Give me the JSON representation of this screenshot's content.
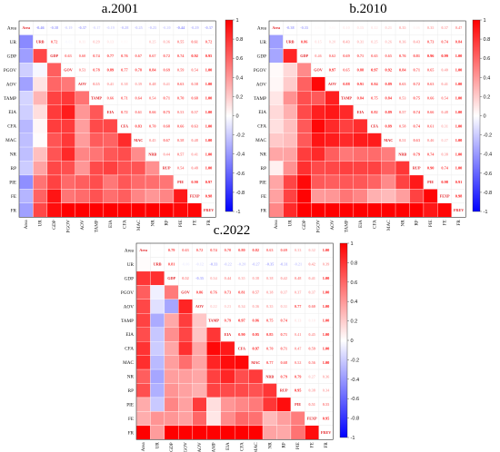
{
  "chart_data": [
    {
      "type": "heatmap",
      "title": "a.2001",
      "variables": [
        "Area",
        "UR",
        "GDP",
        "PGOV",
        "AOV",
        "TAMP",
        "EIA",
        "CFA",
        "MAC",
        "NR",
        "RP",
        "PIE",
        "FE",
        "FR"
      ],
      "diagonal_labels": [
        "Area",
        "URB",
        "GDP",
        "GOV",
        "AOV",
        "TAMP",
        "EIA",
        "CFA",
        "MAC",
        "NRB",
        "RUP",
        "PIE",
        "FEXP",
        "FREV"
      ],
      "upper": [
        [
          -0.46,
          -0.38,
          -0.19,
          -0.37,
          -0.17,
          -0.19,
          -0.28,
          -0.25,
          -0.25,
          -0.2,
          -0.44,
          -0.29,
          -0.37
        ],
        [
          0.72,
          -0.03,
          0.11,
          0.29,
          0.13,
          0.03,
          0.01,
          0.25,
          0.36,
          0.55,
          0.61,
          0.72
        ],
        [
          0.63,
          0.6,
          0.74,
          0.77,
          0.76,
          0.67,
          0.67,
          0.72,
          0.74,
          0.92,
          0.95
        ],
        [
          0.53,
          0.78,
          0.89,
          0.77,
          0.78,
          0.84,
          0.69,
          0.59,
          0.54
        ],
        [
          0.55,
          0.41,
          0.38,
          0.39,
          0.48,
          0.41,
          0.63,
          0.58
        ],
        [
          0.66,
          0.71,
          0.64,
          0.54,
          0.71,
          0.7,
          0.68
        ],
        [
          0.72,
          0.61,
          0.66,
          0.75,
          0.53,
          0.57
        ],
        [
          0.83,
          0.7,
          0.68,
          0.66,
          0.63
        ],
        [
          0.45,
          0.67,
          0.58,
          0.48
        ],
        [
          0.44,
          0.57,
          0.41
        ],
        [
          0.54,
          0.48
        ],
        [
          0.9,
          0.97
        ],
        [
          0.98
        ]
      ],
      "colorbar": {
        "min": -1,
        "max": 1,
        "ticks": [
          "1",
          "0.8",
          "0.6",
          "0.4",
          "0.2",
          "0",
          "-0.2",
          "-0.4",
          "-0.6",
          "-0.8",
          "-1"
        ]
      }
    },
    {
      "type": "heatmap",
      "title": "b.2010",
      "variables": [
        "Area",
        "UR",
        "GDP",
        "PGOV",
        "AOV",
        "TAMP",
        "EIA",
        "CFA",
        "MAC",
        "NR",
        "RP",
        "PIE",
        "FE",
        "FR"
      ],
      "diagonal_labels": [
        "Area",
        "URB",
        "GDP",
        "GOV",
        "AOV",
        "TAMP",
        "EIA",
        "CFA",
        "MAC",
        "NRB",
        "RUP",
        "PIE",
        "FEXP",
        "FREV"
      ],
      "upper": [
        [
          -0.38,
          -0.35,
          0.02,
          0.03,
          0.1,
          0.15,
          0.12,
          0.21,
          0.35,
          0.06,
          0.35,
          0.37,
          0.47
        ],
        [
          0.86,
          0.15,
          0.2,
          0.43,
          0.31,
          0.25,
          0.26,
          0.36,
          0.43,
          0.73,
          0.74,
          0.84
        ],
        [
          0.46,
          0.62,
          0.69,
          0.71,
          0.65,
          0.65,
          0.76,
          0.81,
          0.96,
          0.99
        ],
        [
          0.97,
          0.65,
          0.88,
          0.97,
          0.92,
          0.84,
          0.71,
          0.65,
          0.4
        ],
        [
          0.88,
          0.91,
          0.84,
          0.89,
          0.63,
          0.72,
          0.63,
          0.41
        ],
        [
          0.84,
          0.75,
          0.84,
          0.53,
          0.75,
          0.66,
          0.54
        ],
        [
          0.82,
          0.89,
          0.57,
          0.74,
          0.66,
          0.48
        ],
        [
          0.89,
          0.58,
          0.74,
          0.61,
          0.31
        ],
        [
          0.51,
          0.63,
          0.46,
          0.27
        ],
        [
          0.79,
          0.74,
          0.38
        ],
        [
          0.9,
          0.74
        ],
        [
          0.98,
          0.91
        ],
        [
          0.98
        ]
      ],
      "colorbar": {
        "min": -1,
        "max": 1,
        "ticks": [
          "1",
          "0.8",
          "0.6",
          "0.4",
          "0.2",
          "0",
          "-0.2",
          "-0.4",
          "-0.6",
          "-0.8",
          "-1"
        ]
      }
    },
    {
      "type": "heatmap",
      "title": "c.2022",
      "variables": [
        "Area",
        "UR",
        "GDP",
        "PGOV",
        "AOV",
        "TAMP",
        "EIA",
        "CFA",
        "MAC",
        "NR",
        "RP",
        "PIE",
        "FE",
        "FR"
      ],
      "diagonal_labels": [
        "Area",
        "URB",
        "GDP",
        "GOV",
        "AOV",
        "TAMP",
        "EIA",
        "CFA",
        "MAC",
        "NRB",
        "RUP",
        "PIE",
        "FEXP",
        "FREV"
      ],
      "upper": [
        [
          0.01,
          0.79,
          0.63,
          0.72,
          0.74,
          0.7,
          0.8,
          0.82,
          0.63,
          0.69,
          0.33,
          0.32
        ],
        [
          0.81,
          -0.06,
          -0.12,
          -0.33,
          -0.22,
          -0.2,
          -0.27,
          -0.35,
          -0.31,
          -0.21,
          0.42,
          0.39
        ],
        [
          0.52,
          -0.35,
          0.34,
          0.44,
          0.35,
          0.38,
          0.38,
          0.42,
          0.48,
          0.41
        ],
        [
          0.86,
          0.76,
          0.73,
          0.81,
          0.57,
          0.38,
          0.37,
          0.37,
          0.37
        ],
        [
          0.22,
          0.23,
          0.34,
          0.36,
          0.35,
          0.31,
          0.77,
          0.6
        ],
        [
          0.79,
          0.97,
          0.86,
          0.75,
          0.74,
          0.13,
          0.1
        ],
        [
          0.9,
          0.95,
          0.85,
          0.71,
          0.41,
          0.45
        ],
        [
          0.97,
          0.7,
          0.71,
          0.47,
          0.59
        ],
        [
          0.77,
          0.68,
          0.52,
          0.56
        ],
        [
          0.79,
          0.79,
          0.27,
          0.36
        ],
        [
          0.95,
          0.38,
          0.34
        ],
        [
          0.51,
          0.55
        ],
        [
          0.95
        ]
      ],
      "colorbar": {
        "min": -1,
        "max": 1,
        "ticks": [
          "1",
          "0.8",
          "0.6",
          "0.4",
          "0.2",
          "0",
          "-0.2",
          "-0.4",
          "-0.6",
          "-0.8",
          "-1"
        ]
      }
    }
  ]
}
